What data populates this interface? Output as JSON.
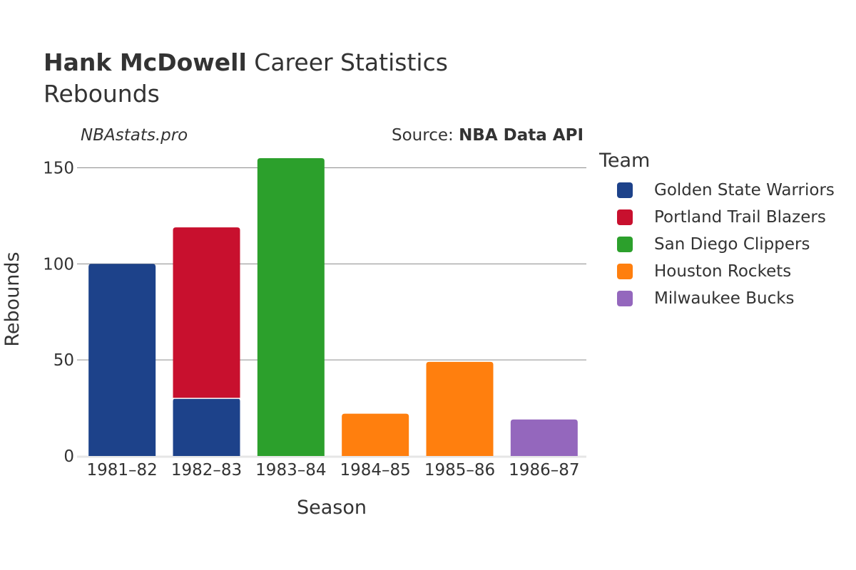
{
  "header": {
    "player": "Hank McDowell",
    "title_rest": "Career Statistics",
    "subtitle": "Rebounds",
    "site": "NBAstats.pro",
    "source_prefix": "Source: ",
    "source_name": "NBA Data API"
  },
  "legend": {
    "title": "Team",
    "items": [
      {
        "label": "Golden State Warriors",
        "color": "#1d428a"
      },
      {
        "label": "Portland Trail Blazers",
        "color": "#c8102e"
      },
      {
        "label": "San Diego Clippers",
        "color": "#2ca02c"
      },
      {
        "label": "Houston Rockets",
        "color": "#ff7f0e"
      },
      {
        "label": "Milwaukee Bucks",
        "color": "#9467bd"
      }
    ]
  },
  "chart_data": {
    "type": "bar",
    "stacked": true,
    "xlabel": "Season",
    "ylabel": "Rebounds",
    "ylim": [
      0,
      160
    ],
    "yticks": [
      0,
      50,
      100,
      150
    ],
    "grid": true,
    "legend_position": "right",
    "categories": [
      "1981–82",
      "1982–83",
      "1983–84",
      "1984–85",
      "1985–86",
      "1986–87"
    ],
    "series": [
      {
        "name": "Golden State Warriors",
        "color": "#1d428a",
        "values": [
          100,
          30,
          0,
          0,
          0,
          0
        ]
      },
      {
        "name": "Portland Trail Blazers",
        "color": "#c8102e",
        "values": [
          0,
          89,
          0,
          0,
          0,
          0
        ]
      },
      {
        "name": "San Diego Clippers",
        "color": "#2ca02c",
        "values": [
          0,
          0,
          155,
          0,
          0,
          0
        ]
      },
      {
        "name": "Houston Rockets",
        "color": "#ff7f0e",
        "values": [
          0,
          0,
          0,
          22,
          49,
          0
        ]
      },
      {
        "name": "Milwaukee Bucks",
        "color": "#9467bd",
        "values": [
          0,
          0,
          0,
          0,
          0,
          19
        ]
      }
    ]
  }
}
